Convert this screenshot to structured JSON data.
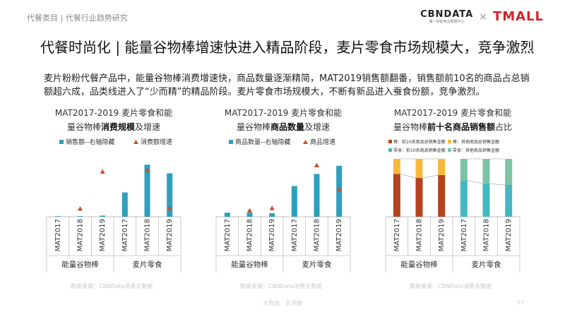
{
  "header": {
    "breadcrumb": "代餐类目 | 代餐行业趋势研究",
    "logo_cbn": "CBNDATA",
    "logo_cbn_sub": "第一财经商业数据中心",
    "logo_times": "×",
    "logo_tmall": "TMALL"
  },
  "title": "代餐时尚化 | 能量谷物棒增速快进入精品阶段，麦片零食市场规模大，竞争激烈",
  "description": "麦片粉粉代餐产品中，能量谷物棒消费增速快，商品数量逐渐精简，MAT2019销售额翻番，销售额前10名的商品占总销额超六成，品类线进入了“少而精”的精品阶段。麦片零食市场规模大，不断有新品进入蚕食份额，竞争激烈。",
  "colors": {
    "bar_blue": "#2e9fbf",
    "marker_red": "#c0512c",
    "axis": "#bfbfbf",
    "stack_dark_red": "#b5431f",
    "stack_orange": "#f6b93b",
    "stack_teal": "#44b8c2",
    "stack_green": "#7cc4a4"
  },
  "chart_data": [
    {
      "type": "bar",
      "title_line1": "MAT2017-2019 麦片零食和能",
      "title_line2_pre": "量谷物棒",
      "title_line2_bold": "消费规模",
      "title_line2_post": "及增速",
      "legend": [
        "销售额--右轴隐藏",
        "消费额增速"
      ],
      "legend_placement": "top",
      "categories": [
        "MAT2017",
        "MAT2018",
        "MAT2019",
        "MAT2017",
        "MAT2018",
        "MAT2019"
      ],
      "groups": [
        "能量谷物棒",
        "麦片零食"
      ],
      "series": [
        {
          "name": "销售额--右轴隐藏",
          "kind": "bar",
          "values": [
            0.01,
            0.01,
            0.02,
            0.42,
            0.9,
            0.75
          ]
        },
        {
          "name": "消费额增速",
          "kind": "marker",
          "values": [
            null,
            0.14,
            0.78,
            null,
            0.81,
            0.15
          ]
        }
      ],
      "ylim": [
        0,
        1
      ]
    },
    {
      "type": "bar",
      "title_line1": "MAT2017-2019 麦片零食和能",
      "title_line2_pre": "量谷物棒",
      "title_line2_bold": "商品数量",
      "title_line2_post": "及增速",
      "legend": [
        "商品数量--右轴隐藏",
        "商品增速"
      ],
      "legend_placement": "top",
      "categories": [
        "MAT2017",
        "MAT2018",
        "MAT2019",
        "MAT2017",
        "MAT2018",
        "MAT2019"
      ],
      "groups": [
        "能量谷物棒",
        "麦片零食"
      ],
      "series": [
        {
          "name": "商品数量--右轴隐藏",
          "kind": "bar",
          "values": [
            0.07,
            0.07,
            0.06,
            0.53,
            0.74,
            0.88
          ]
        },
        {
          "name": "商品增速",
          "kind": "marker",
          "values": [
            null,
            0.11,
            0.15,
            null,
            0.89,
            0.48
          ]
        }
      ],
      "ylim": [
        0,
        1
      ]
    },
    {
      "type": "bar",
      "stacked": true,
      "title_line1": "MAT2017-2019 麦片零食和能",
      "title_line2_pre": "量谷物棒",
      "title_line2_bold": "前十名商品销售额",
      "title_line2_post": "占比",
      "legend": [
        "棒：前10名商品总销售金额",
        "棒：其他商品总销售金额",
        "零食：前10名商品销售金额",
        "零食：其他商品销售金额"
      ],
      "legend_placement": "top",
      "categories": [
        "MAT2017",
        "MAT2018",
        "MAT2019",
        "MAT2017",
        "MAT2018",
        "MAT2019"
      ],
      "groups": [
        "能量谷物棒",
        "麦片零食"
      ],
      "series": [
        {
          "name": "棒：前10名商品总销售金额",
          "values": [
            0.74,
            0.67,
            0.72,
            null,
            null,
            null
          ]
        },
        {
          "name": "棒：其他商品总销售金额",
          "values": [
            0.26,
            0.33,
            0.28,
            null,
            null,
            null
          ]
        },
        {
          "name": "零食：前10名商品销售金额",
          "values": [
            null,
            null,
            null,
            0.63,
            0.57,
            0.55
          ]
        },
        {
          "name": "零食：其他商品销售金额",
          "values": [
            null,
            null,
            null,
            0.37,
            0.43,
            0.45
          ]
        }
      ],
      "ylim": [
        0,
        1
      ]
    }
  ],
  "source_label": "数据来源：CBNData消费大数据",
  "footer": "大数据 · 全洞察",
  "page_number": "57"
}
